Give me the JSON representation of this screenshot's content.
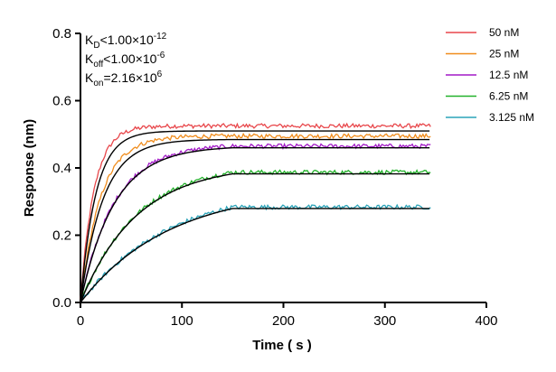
{
  "chart_data": {
    "type": "line",
    "xlabel": "Time ( s )",
    "ylabel": "Response (nm)",
    "xlim": [
      0,
      400
    ],
    "ylim": [
      0,
      0.8
    ],
    "x_ticks": [
      0,
      100,
      200,
      300,
      400
    ],
    "y_ticks": [
      0.0,
      0.2,
      0.4,
      0.6,
      0.8
    ],
    "x_tick_labels": [
      "0",
      "100",
      "200",
      "300",
      "400"
    ],
    "y_tick_labels": [
      "0.0",
      "0.2",
      "0.4",
      "0.6",
      "0.8"
    ],
    "grid": false,
    "legend_position": "top-right",
    "association_end": 150,
    "x_end": 345,
    "annotations": [
      {
        "main": "K",
        "sub": "D",
        "rest": "<1.00×10",
        "sup": "-12"
      },
      {
        "main": "K",
        "sub": "off",
        "rest": "<1.00×10",
        "sup": "-6"
      },
      {
        "main": "K",
        "sub": "on",
        "rest": "=2.16×10",
        "sup": "6"
      }
    ],
    "series": [
      {
        "name": "50 nM",
        "color": "#e8474b",
        "plateau": 0.525,
        "rate": 0.075
      },
      {
        "name": "25 nM",
        "color": "#f08c1c",
        "plateau": 0.495,
        "rate": 0.05
      },
      {
        "name": "12.5 nM",
        "color": "#a21ac7",
        "plateau": 0.47,
        "rate": 0.03
      },
      {
        "name": "6.25 nM",
        "color": "#22b12a",
        "plateau": 0.415,
        "rate": 0.018
      },
      {
        "name": "3.125 nM",
        "color": "#2aa3b8",
        "plateau": 0.345,
        "rate": 0.0115
      }
    ],
    "fit_series": [
      {
        "name": "fit",
        "color": "#000000",
        "plateaus": [
          0.51,
          0.485,
          0.465,
          0.41,
          0.34
        ],
        "rate": 0.046,
        "rates": [
          0.066,
          0.045,
          0.03,
          0.018,
          0.0115
        ]
      }
    ]
  }
}
